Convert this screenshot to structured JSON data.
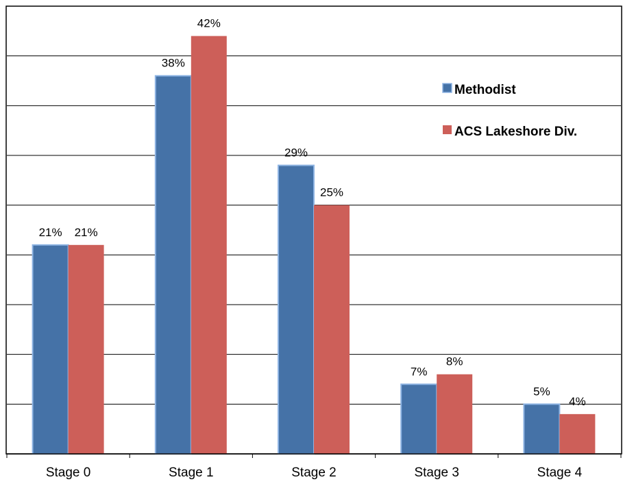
{
  "chart_data": {
    "type": "bar",
    "title": "",
    "xlabel": "",
    "ylabel": "",
    "categories": [
      "Stage 0",
      "Stage 1",
      "Stage 2",
      "Stage 3",
      "Stage 4"
    ],
    "series": [
      {
        "name": "Methodist",
        "values": [
          21,
          38,
          29,
          7,
          5
        ],
        "labels": [
          "21%",
          "38%",
          "29%",
          "7%",
          "5%"
        ],
        "color": "#4572A7",
        "border_color": "#8EB4E3"
      },
      {
        "name": "ACS Lakeshore Div.",
        "values": [
          21,
          42,
          25,
          8,
          4
        ],
        "labels": [
          "21%",
          "42%",
          "25%",
          "8%",
          "4%"
        ],
        "color": "#CD5F59"
      }
    ],
    "ylim": [
      0,
      45
    ],
    "grid": true,
    "legend_position": "right"
  }
}
